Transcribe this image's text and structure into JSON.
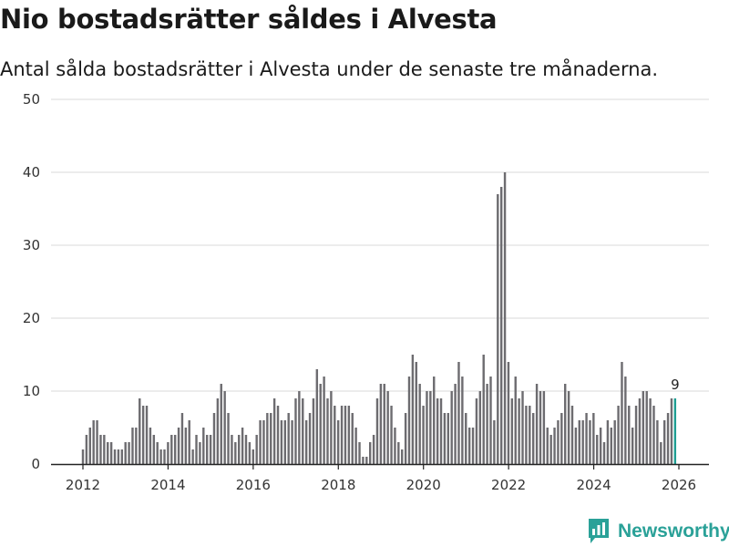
{
  "title": "Nio bostadsrätter såldes i Alvesta",
  "subtitle": "Antal sålda bostadsrätter i Alvesta under de senaste tre månaderna.",
  "brand": {
    "name": "Newsworthy",
    "icon": "bar-chart-flag-icon",
    "color": "#2aa198"
  },
  "colors": {
    "bar": "#6d6c70",
    "highlight": "#1f9e93",
    "grid": "#d9d9d9"
  },
  "chart_data": {
    "type": "bar",
    "title": "Nio bostadsrätter såldes i Alvesta",
    "subtitle": "Antal sålda bostadsrätter i Alvesta under de senaste tre månaderna.",
    "xlabel": "",
    "ylabel": "",
    "ylim": [
      0,
      50
    ],
    "yticks": [
      0,
      10,
      20,
      30,
      40,
      50
    ],
    "xticks": [
      2012,
      2014,
      2016,
      2018,
      2020,
      2022,
      2024,
      2026
    ],
    "x_start": 2012.0,
    "step": 0.0833,
    "grid": true,
    "values": [
      2,
      4,
      5,
      6,
      6,
      4,
      4,
      3,
      3,
      2,
      2,
      2,
      3,
      3,
      5,
      5,
      9,
      8,
      8,
      5,
      4,
      3,
      2,
      2,
      3,
      4,
      4,
      5,
      7,
      5,
      6,
      2,
      4,
      3,
      5,
      4,
      4,
      7,
      9,
      11,
      10,
      7,
      4,
      3,
      4,
      5,
      4,
      3,
      2,
      4,
      6,
      6,
      7,
      7,
      9,
      8,
      6,
      6,
      7,
      6,
      9,
      10,
      9,
      6,
      7,
      9,
      13,
      11,
      12,
      9,
      10,
      8,
      6,
      8,
      8,
      8,
      7,
      5,
      3,
      1,
      1,
      3,
      4,
      9,
      11,
      11,
      10,
      8,
      5,
      3,
      2,
      7,
      12,
      15,
      14,
      11,
      8,
      10,
      10,
      12,
      9,
      9,
      7,
      7,
      10,
      11,
      14,
      12,
      7,
      5,
      5,
      9,
      10,
      15,
      11,
      12,
      6,
      37,
      38,
      40,
      14,
      9,
      12,
      9,
      10,
      8,
      8,
      7,
      11,
      10,
      10,
      5,
      4,
      5,
      6,
      7,
      11,
      10,
      8,
      5,
      6,
      6,
      7,
      6,
      7,
      4,
      5,
      3,
      6,
      5,
      6,
      8,
      14,
      12,
      8,
      5,
      8,
      9,
      10,
      10,
      9,
      8,
      6,
      3,
      6,
      7,
      9,
      9
    ],
    "highlight_last": true,
    "last_value_label": "9"
  }
}
